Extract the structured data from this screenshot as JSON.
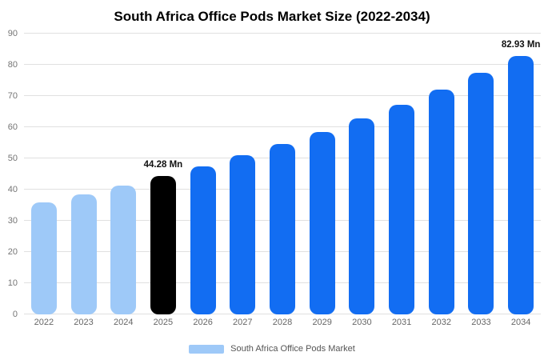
{
  "title": "South Africa Office Pods Market Size (2022-2034)",
  "legend": {
    "label": "South Africa Office Pods Market"
  },
  "colors": {
    "historical": "#9ec9f8",
    "forecast": "#126df2",
    "highlight": "#000000",
    "grid": "#e0e0e0",
    "axis_text": "#757575",
    "annotation": "#111111"
  },
  "chart_data": {
    "type": "bar",
    "title": "South Africa Office Pods Market Size (2022-2034)",
    "categories": [
      "2022",
      "2023",
      "2024",
      "2025",
      "2026",
      "2027",
      "2028",
      "2029",
      "2030",
      "2031",
      "2032",
      "2033",
      "2034"
    ],
    "values": [
      35.93,
      38.52,
      41.3,
      44.28,
      47.48,
      50.91,
      54.58,
      58.52,
      62.75,
      67.28,
      72.14,
      77.35,
      82.93
    ],
    "unit": "Mn",
    "color_roles": [
      "historical",
      "historical",
      "historical",
      "highlight",
      "forecast",
      "forecast",
      "forecast",
      "forecast",
      "forecast",
      "forecast",
      "forecast",
      "forecast",
      "forecast"
    ],
    "annotations": [
      {
        "index": 3,
        "text": "44.28 Mn"
      },
      {
        "index": 12,
        "text": "82.93 Mn"
      }
    ],
    "ylim": [
      0,
      90
    ],
    "yticks": [
      0,
      10,
      20,
      30,
      40,
      50,
      60,
      70,
      80,
      90
    ],
    "grid": true,
    "legend_position": "bottom"
  }
}
